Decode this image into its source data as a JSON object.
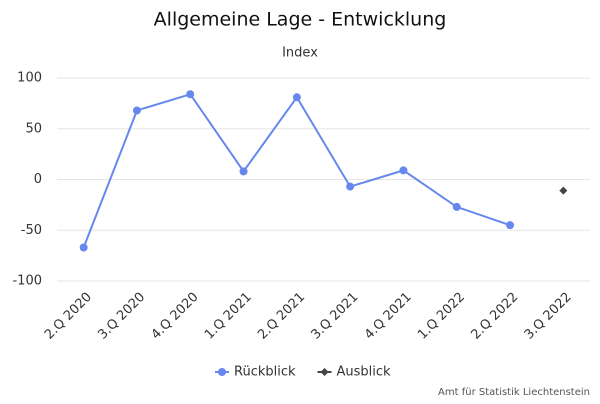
{
  "chart_data": {
    "type": "line",
    "title": "Allgemeine Lage - Entwicklung",
    "subtitle": "Index",
    "categories": [
      "2.Q 2020",
      "3.Q 2020",
      "4.Q 2020",
      "1.Q 2021",
      "2.Q 2021",
      "3.Q 2021",
      "4.Q 2021",
      "1.Q 2022",
      "2.Q 2022",
      "3.Q 2022"
    ],
    "series": [
      {
        "name": "Rückblick",
        "color": "#6688ee",
        "marker": "circle",
        "values": [
          -67,
          68,
          84,
          8,
          81,
          -7,
          9,
          -27,
          -45,
          null
        ]
      },
      {
        "name": "Ausblick",
        "color": "#444444",
        "marker": "diamond",
        "values": [
          null,
          null,
          null,
          null,
          null,
          null,
          null,
          null,
          null,
          -11
        ]
      }
    ],
    "ylim": [
      -100,
      100
    ],
    "yticks": [
      -100,
      -50,
      0,
      50,
      100
    ],
    "grid": true,
    "legend": "bottom",
    "credit": "Amt für Statistik Liechtenstein"
  }
}
